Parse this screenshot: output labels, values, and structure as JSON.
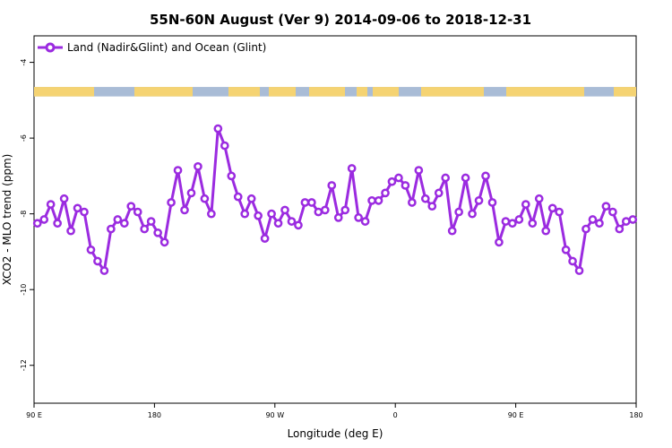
{
  "chart_data": {
    "type": "line",
    "title": "55N-60N August (Ver 9)   2014-09-06 to 2018-12-31",
    "xlabel": "Longitude (deg E)",
    "ylabel": "XCO2 - MLO trend (ppm)",
    "xlim": [
      90,
      540
    ],
    "ylim": [
      -13,
      -3.3
    ],
    "x_ticks": [
      90,
      180,
      270,
      360,
      450,
      540
    ],
    "x_tick_labels": [
      "90 E",
      "180",
      "90 W",
      "0",
      "90 E",
      "180"
    ],
    "y_ticks": [
      -4,
      -6,
      -8,
      -10,
      -12
    ],
    "y_tick_labels": [
      "-4",
      "-6",
      "-8",
      "-10",
      "-12"
    ],
    "legend_position": "top-left",
    "land_ocean_band": {
      "y_range": [
        -4.9,
        -4.65
      ],
      "land_color": "#f5d372",
      "ocean_color": "#a9bcd6"
    },
    "series": [
      {
        "name": "Land (Nadir&Glint) and Ocean (Glint)",
        "color": "#9b2be0",
        "x": [
          92.5,
          97.5,
          102.5,
          107.5,
          112.5,
          117.5,
          122.5,
          127.5,
          132.5,
          137.5,
          142.5,
          147.5,
          152.5,
          157.5,
          162.5,
          167.5,
          172.5,
          177.5,
          182.5,
          187.5,
          192.5,
          197.5,
          202.5,
          207.5,
          212.5,
          217.5,
          222.5,
          227.5,
          232.5,
          237.5,
          242.5,
          247.5,
          252.5,
          257.5,
          262.5,
          267.5,
          272.5,
          277.5,
          282.5,
          287.5,
          292.5,
          297.5,
          302.5,
          307.5,
          312.5,
          317.5,
          322.5,
          327.5,
          332.5,
          337.5,
          342.5,
          347.5,
          352.5,
          357.5,
          362.5,
          367.5,
          372.5,
          377.5,
          382.5,
          387.5,
          392.5,
          397.5,
          402.5,
          407.5,
          412.5,
          417.5,
          422.5,
          427.5,
          432.5,
          437.5,
          442.5,
          447.5,
          452.5,
          457.5,
          462.5,
          467.5,
          472.5,
          477.5,
          482.5,
          487.5,
          492.5,
          497.5,
          502.5,
          507.5,
          512.5,
          517.5,
          522.5,
          527.5,
          532.5,
          537.5
        ],
        "values": [
          -8.25,
          -8.15,
          -7.75,
          -8.25,
          -7.6,
          -8.45,
          -7.85,
          -7.95,
          -8.95,
          -9.25,
          -9.5,
          -8.4,
          -8.15,
          -8.25,
          -7.8,
          -7.95,
          -8.4,
          -8.2,
          -8.5,
          -8.75,
          -7.7,
          -6.85,
          -7.9,
          -7.45,
          -6.75,
          -7.6,
          -8.0,
          -5.75,
          -6.2,
          -7.0,
          -7.55,
          -8.0,
          -7.6,
          -8.05,
          -8.65,
          -8.0,
          -8.25,
          -7.9,
          -8.2,
          -8.3,
          -7.7,
          -7.7,
          -7.95,
          -7.9,
          -7.25,
          -8.1,
          -7.9,
          -6.8,
          -8.1,
          -8.2,
          -7.65,
          -7.65,
          -7.45,
          -7.15,
          -7.05,
          -7.25,
          -7.7,
          -6.85,
          -7.6,
          -7.8,
          -7.45,
          -7.05,
          -8.45,
          -7.95,
          -7.05,
          -8.0,
          -7.65,
          -7.0,
          -7.7,
          -8.75,
          -8.2,
          -8.25,
          -8.15,
          -7.75,
          -8.25,
          -7.6,
          -8.45,
          -7.85,
          -7.95,
          -8.95,
          -9.25,
          -9.5,
          -8.4,
          -8.15,
          -8.25,
          -7.8,
          -7.95,
          -8.4,
          -8.2,
          -8.15
        ]
      }
    ]
  }
}
